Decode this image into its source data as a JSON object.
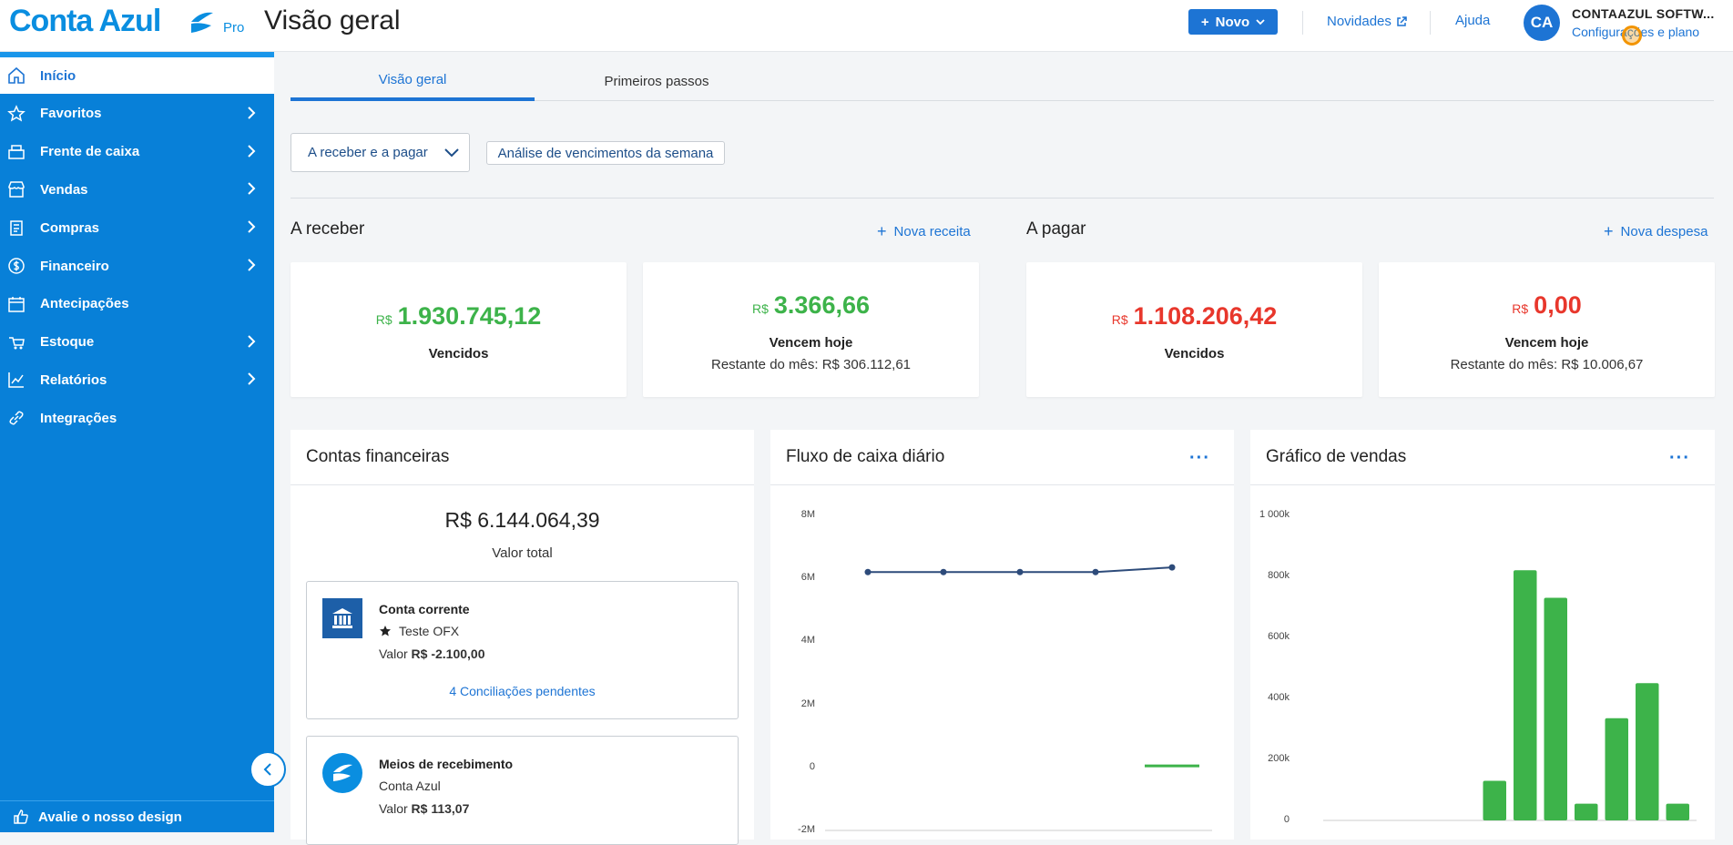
{
  "header": {
    "logo": "Conta Azul",
    "plan": "Pro",
    "page_title": "Visão geral",
    "new_button": "Novo",
    "news_link": "Novidades",
    "help_link": "Ajuda",
    "avatar_initials": "CA",
    "company_name": "CONTAAZUL SOFTW...",
    "settings_link": "Configurações e plano"
  },
  "sidebar": {
    "items": [
      {
        "label": "Início",
        "icon": "home-icon",
        "active": true,
        "has_chevron": false
      },
      {
        "label": "Favoritos",
        "icon": "star-icon",
        "has_chevron": true
      },
      {
        "label": "Frente de caixa",
        "icon": "register-icon",
        "has_chevron": true
      },
      {
        "label": "Vendas",
        "icon": "store-icon",
        "has_chevron": true
      },
      {
        "label": "Compras",
        "icon": "clipboard-icon",
        "has_chevron": true
      },
      {
        "label": "Financeiro",
        "icon": "dollar-icon",
        "has_chevron": true
      },
      {
        "label": "Antecipações",
        "icon": "calendar-icon",
        "has_chevron": false
      },
      {
        "label": "Estoque",
        "icon": "box-icon",
        "has_chevron": true
      },
      {
        "label": "Relatórios",
        "icon": "chart-icon",
        "has_chevron": true
      },
      {
        "label": "Integrações",
        "icon": "link-icon",
        "has_chevron": false
      }
    ],
    "feedback": "Avalie o nosso design"
  },
  "tabs": [
    {
      "label": "Visão geral",
      "active": true
    },
    {
      "label": "Primeiros passos",
      "active": false
    }
  ],
  "filters": {
    "select": "A receber e a pagar",
    "chip": "Análise de vencimentos da semana"
  },
  "receivable": {
    "title": "A receber",
    "new_link": "Nova receita",
    "overdue": {
      "currency": "R$",
      "value": "1.930.745,12",
      "label": "Vencidos"
    },
    "today": {
      "currency": "R$",
      "value": "3.366,66",
      "label": "Vencem hoje",
      "rest": "Restante do mês: R$ 306.112,61"
    }
  },
  "payable": {
    "title": "A pagar",
    "new_link": "Nova despesa",
    "overdue": {
      "currency": "R$",
      "value": "1.108.206,42",
      "label": "Vencidos"
    },
    "today": {
      "currency": "R$",
      "value": "0,00",
      "label": "Vencem hoje",
      "rest": "Restante do mês: R$ 10.006,67"
    }
  },
  "accounts": {
    "title": "Contas financeiras",
    "total": "R$ 6.144.064,39",
    "total_label": "Valor total",
    "items": [
      {
        "name": "Conta corrente",
        "bank": "Teste OFX",
        "value_label": "Valor",
        "value": "R$ -2.100,00",
        "link": "4 Conciliações pendentes"
      },
      {
        "name": "Meios de recebimento",
        "bank": "Conta Azul",
        "value_label": "Valor",
        "value": "R$ 113,07"
      }
    ]
  },
  "cashflow": {
    "title": "Fluxo de caixa diário",
    "more": "···"
  },
  "sales": {
    "title": "Gráfico de vendas",
    "more": "···"
  },
  "chart_data": [
    {
      "type": "line",
      "title": "Fluxo de caixa diário",
      "y_ticks": [
        "8M",
        "6M",
        "4M",
        "2M",
        "0",
        "-2M"
      ],
      "ylim": [
        -2000000,
        8000000
      ],
      "series": [
        {
          "values": [
            6200000,
            6200000,
            6200000,
            6200000,
            6350000
          ],
          "color": "#2d4b7a"
        },
        {
          "values": [
            null,
            null,
            null,
            null,
            50000
          ],
          "color": "#3db34a"
        }
      ]
    },
    {
      "type": "bar",
      "title": "Gráfico de vendas",
      "y_ticks": [
        "1 000k",
        "800k",
        "600k",
        "400k",
        "200k",
        "0"
      ],
      "ylim": [
        0,
        1000000
      ],
      "values": [
        0,
        0,
        0,
        0,
        0,
        130000,
        820000,
        730000,
        55000,
        335000,
        450000,
        55000
      ],
      "color": "#3db34a"
    }
  ]
}
